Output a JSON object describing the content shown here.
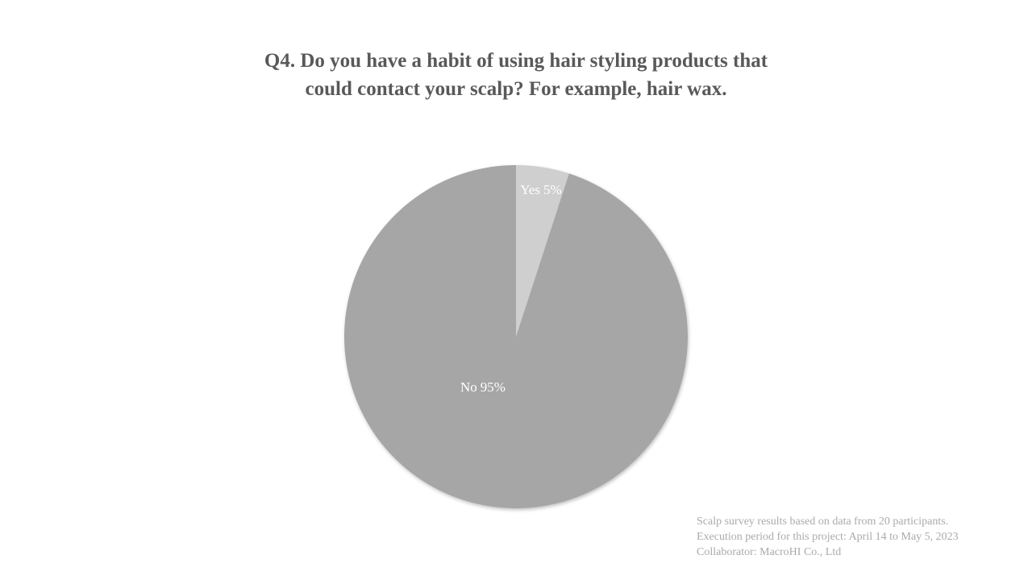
{
  "chart_data": {
    "type": "pie",
    "title": "Q4. Do you have a habit of using hair styling products that could contact your scalp? For example, hair wax.",
    "categories": [
      "Yes",
      "No"
    ],
    "values": [
      5,
      95
    ],
    "value_labels": [
      "5%",
      "95%"
    ],
    "colors": [
      "#d0cfd0",
      "#a6a6a6"
    ],
    "notes": [
      "Scalp survey results based on data from 20 participants.",
      "Execution period for this project: April 14 to May 5, 2023",
      "Collaborator: MacroHI Co., Ltd"
    ]
  }
}
